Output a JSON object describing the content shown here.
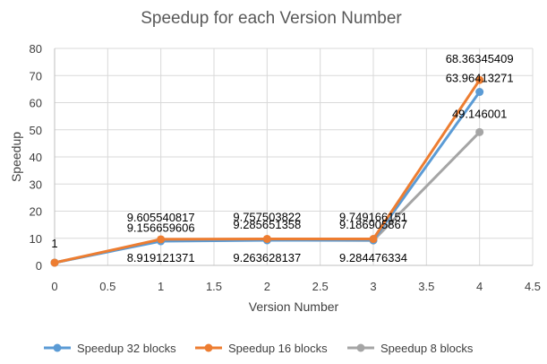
{
  "chart_data": {
    "type": "scatter",
    "title": "Speedup for each Version Number",
    "xlabel": "Version Number",
    "ylabel": "Speedup",
    "xlim": [
      0,
      4.5
    ],
    "ylim": [
      0,
      80
    ],
    "x_ticks": [
      "0",
      "0.5",
      "1",
      "1.5",
      "2",
      "2.5",
      "3",
      "3.5",
      "4",
      "4.5"
    ],
    "y_ticks": [
      "0",
      "10",
      "20",
      "30",
      "40",
      "50",
      "60",
      "70",
      "80"
    ],
    "grid": true,
    "legend": "bottom",
    "series": [
      {
        "name": "Speedup 32 blocks",
        "color": "#5B9BD5",
        "x": [
          0,
          1,
          2,
          3,
          4
        ],
        "y": [
          1,
          8.919121371,
          9.263628137,
          9.284476334,
          63.96413271
        ],
        "labels": [
          "1",
          "8.919121371",
          "9.263628137",
          "9.284476334",
          "63.96413271"
        ]
      },
      {
        "name": "Speedup 16 blocks",
        "color": "#ED7D31",
        "x": [
          0,
          1,
          2,
          3,
          4
        ],
        "y": [
          1,
          9.605540817,
          9.757503822,
          9.749166151,
          68.36345409
        ],
        "labels": [
          "",
          "9.605540817",
          "9.757503822",
          "9.749166151",
          "68.36345409"
        ]
      },
      {
        "name": "Speedup 8 blocks",
        "color": "#A5A5A5",
        "x": [
          0,
          1,
          2,
          3,
          4
        ],
        "y": [
          1,
          9.156659606,
          9.285651358,
          9.186905867,
          49.146001
        ],
        "labels": [
          "",
          "9.156659606",
          "9.285651358",
          "9.186905867",
          "49.146001"
        ]
      }
    ]
  }
}
